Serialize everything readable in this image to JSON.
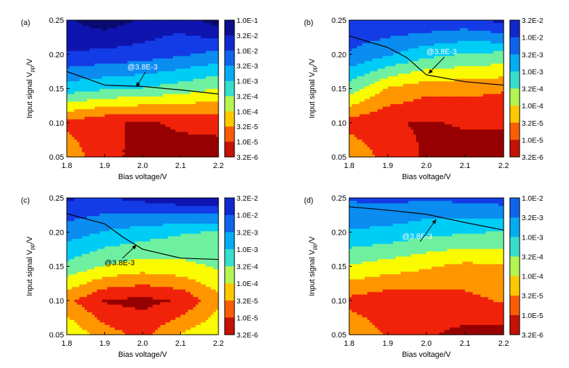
{
  "figure": {
    "panels": [
      {
        "label": "(a)",
        "xlabel": "Bias voltage/V",
        "ylabel": "Input signal V",
        "ylabel_sub": "pp",
        "ylabel_tail": "/V",
        "xticks": [
          "1.8",
          "1.9",
          "2.0",
          "2.1",
          "2.2"
        ],
        "yticks": [
          "0.05",
          "0.10",
          "0.15",
          "0.20",
          "0.25"
        ],
        "colorbar_ticks": [
          "1.0E-1",
          "3.2E-2",
          "1.0E-2",
          "3.2E-3",
          "1.0E-3",
          "3.2E-4",
          "1.0E-4",
          "3.2E-5",
          "1.0E-5",
          "3.2E-6"
        ],
        "annotation": "@3.8E-3"
      },
      {
        "label": "(b)",
        "xlabel": "Bias voltage/V",
        "ylabel": "Input signal V",
        "ylabel_sub": "pp",
        "ylabel_tail": "/V",
        "xticks": [
          "1.8",
          "1.9",
          "2.0",
          "2.1",
          "2.2"
        ],
        "yticks": [
          "0.05",
          "0.10",
          "0.15",
          "0.20",
          "0.25"
        ],
        "colorbar_ticks": [
          "3.2E-2",
          "1.0E-2",
          "3.2E-3",
          "1.0E-3",
          "3.2E-4",
          "1.0E-4",
          "3.2E-5",
          "1.0E-5",
          "3.2E-6"
        ],
        "annotation": "@3.8E-3"
      },
      {
        "label": "(c)",
        "xlabel": "Bias voltage/V",
        "ylabel": "Input signal V",
        "ylabel_sub": "pp",
        "ylabel_tail": "/V",
        "xticks": [
          "1.8",
          "1.9",
          "2.0",
          "2.1",
          "2.2"
        ],
        "yticks": [
          "0.05",
          "0.10",
          "0.15",
          "0.20",
          "0.25"
        ],
        "colorbar_ticks": [
          "3.2E-2",
          "1.0E-2",
          "3.2E-3",
          "1.0E-3",
          "3.2E-4",
          "1.0E-4",
          "3.2E-5",
          "1.0E-5",
          "3.2E-6"
        ],
        "annotation": "@3.8E-3"
      },
      {
        "label": "(d)",
        "xlabel": "Bias voltage/V",
        "ylabel": "Input signal V",
        "ylabel_sub": "pp",
        "ylabel_tail": "/V",
        "xticks": [
          "1.8",
          "1.9",
          "2.0",
          "2.1",
          "2.2"
        ],
        "yticks": [
          "0.05",
          "0.10",
          "0.15",
          "0.20",
          "0.25"
        ],
        "colorbar_ticks": [
          "1.0E-2",
          "3.2E-3",
          "1.0E-3",
          "3.2E-4",
          "1.0E-4",
          "3.2E-5",
          "1.0E-5",
          "3.2E-6"
        ],
        "annotation": "@3.8E-3"
      }
    ]
  },
  "chart_data": [
    {
      "type": "heatmap",
      "panel": "(a)",
      "xlabel": "Bias voltage/V",
      "ylabel": "Input signal Vpp/V",
      "xlim": [
        1.8,
        2.2
      ],
      "ylim": [
        0.05,
        0.25
      ],
      "x": [
        1.8,
        1.9,
        2.0,
        2.1,
        2.2
      ],
      "y": [
        0.05,
        0.1,
        0.15,
        0.2,
        0.25
      ],
      "z_log10": [
        [
          -4.3,
          -5.2,
          -5.3,
          -5.4,
          -5.5
        ],
        [
          -4.9,
          -5.2,
          -5.3,
          -5.2,
          -5.1
        ],
        [
          -3.0,
          -3.2,
          -3.3,
          -3.5,
          -3.8
        ],
        [
          -1.8,
          -1.9,
          -2.0,
          -2.2,
          -2.4
        ],
        [
          -1.3,
          -1.0,
          -1.3,
          -1.5,
          -1.0
        ]
      ],
      "colorbar": {
        "scale": "log",
        "range": [
          3.2e-06,
          0.1
        ],
        "ticks": [
          "1.0E-1",
          "3.2E-2",
          "1.0E-2",
          "3.2E-3",
          "1.0E-3",
          "3.2E-4",
          "1.0E-4",
          "3.2E-5",
          "1.0E-5",
          "3.2E-6"
        ]
      },
      "contour": {
        "value": 0.0038,
        "label": "@3.8E-3",
        "x": [
          1.8,
          1.85,
          1.9,
          2.0,
          2.1,
          2.2
        ],
        "y": [
          0.175,
          0.165,
          0.155,
          0.153,
          0.148,
          0.142
        ]
      }
    },
    {
      "type": "heatmap",
      "panel": "(b)",
      "xlabel": "Bias voltage/V",
      "ylabel": "Input signal Vpp/V",
      "xlim": [
        1.8,
        2.2
      ],
      "ylim": [
        0.05,
        0.25
      ],
      "x": [
        1.8,
        1.9,
        2.0,
        2.1,
        2.2
      ],
      "y": [
        0.05,
        0.1,
        0.15,
        0.2,
        0.25
      ],
      "z_log10": [
        [
          -4.2,
          -5.0,
          -5.3,
          -5.5,
          -5.5
        ],
        [
          -5.0,
          -5.2,
          -5.3,
          -5.2,
          -5.2
        ],
        [
          -3.5,
          -4.3,
          -4.6,
          -4.6,
          -4.7
        ],
        [
          -2.3,
          -2.7,
          -3.1,
          -3.3,
          -3.4
        ],
        [
          -1.8,
          -1.8,
          -1.8,
          -1.9,
          -1.6
        ]
      ],
      "colorbar": {
        "scale": "log",
        "range": [
          3.2e-06,
          0.032
        ],
        "ticks": [
          "3.2E-2",
          "1.0E-2",
          "3.2E-3",
          "1.0E-3",
          "3.2E-4",
          "1.0E-4",
          "3.2E-5",
          "1.0E-5",
          "3.2E-6"
        ]
      },
      "contour": {
        "value": 0.0038,
        "label": "@3.8E-3",
        "x": [
          1.8,
          1.9,
          1.95,
          2.0,
          2.1,
          2.2
        ],
        "y": [
          0.227,
          0.21,
          0.195,
          0.17,
          0.16,
          0.155
        ]
      }
    },
    {
      "type": "heatmap",
      "panel": "(c)",
      "xlabel": "Bias voltage/V",
      "ylabel": "Input signal Vpp/V",
      "xlim": [
        1.8,
        2.2
      ],
      "ylim": [
        0.05,
        0.25
      ],
      "x": [
        1.8,
        1.9,
        2.0,
        2.1,
        2.2
      ],
      "y": [
        0.05,
        0.1,
        0.15,
        0.2,
        0.25
      ],
      "z_log10": [
        [
          -3.8,
          -4.5,
          -4.9,
          -4.2,
          -3.8
        ],
        [
          -4.6,
          -5.3,
          -5.4,
          -5.2,
          -4.4
        ],
        [
          -3.4,
          -3.8,
          -4.0,
          -3.9,
          -3.7
        ],
        [
          -2.5,
          -2.8,
          -3.0,
          -3.2,
          -3.3
        ],
        [
          -1.7,
          -1.8,
          -1.6,
          -1.4,
          -1.3
        ]
      ],
      "colorbar": {
        "scale": "log",
        "range": [
          3.2e-06,
          0.032
        ],
        "ticks": [
          "3.2E-2",
          "1.0E-2",
          "3.2E-3",
          "1.0E-3",
          "3.2E-4",
          "1.0E-4",
          "3.2E-5",
          "1.0E-5",
          "3.2E-6"
        ]
      },
      "contour": {
        "value": 0.0038,
        "label": "@3.8E-3",
        "x": [
          1.8,
          1.9,
          1.95,
          2.0,
          2.1,
          2.2
        ],
        "y": [
          0.227,
          0.212,
          0.192,
          0.175,
          0.162,
          0.16
        ]
      }
    },
    {
      "type": "heatmap",
      "panel": "(d)",
      "xlabel": "Bias voltage/V",
      "ylabel": "Input signal Vpp/V",
      "xlim": [
        1.8,
        2.2
      ],
      "ylim": [
        0.05,
        0.25
      ],
      "x": [
        1.8,
        1.9,
        2.0,
        2.1,
        2.2
      ],
      "y": [
        0.05,
        0.1,
        0.15,
        0.2,
        0.25
      ],
      "z_log10": [
        [
          -4.3,
          -4.8,
          -5.2,
          -5.4,
          -5.5
        ],
        [
          -4.9,
          -5.1,
          -5.0,
          -4.9,
          -4.7
        ],
        [
          -3.8,
          -4.0,
          -4.2,
          -4.4,
          -4.3
        ],
        [
          -2.8,
          -2.9,
          -3.1,
          -3.2,
          -3.3
        ],
        [
          -2.2,
          -2.1,
          -2.2,
          -2.1,
          -2.0
        ]
      ],
      "colorbar": {
        "scale": "log",
        "range": [
          3.2e-06,
          0.01
        ],
        "ticks": [
          "1.0E-2",
          "3.2E-3",
          "1.0E-3",
          "3.2E-4",
          "1.0E-4",
          "3.2E-5",
          "1.0E-5",
          "3.2E-6"
        ]
      },
      "contour": {
        "value": 0.0038,
        "label": "@3.8E-3",
        "x": [
          1.8,
          1.9,
          2.0,
          2.1,
          2.2
        ],
        "y": [
          0.237,
          0.232,
          0.226,
          0.214,
          0.203
        ]
      }
    }
  ]
}
